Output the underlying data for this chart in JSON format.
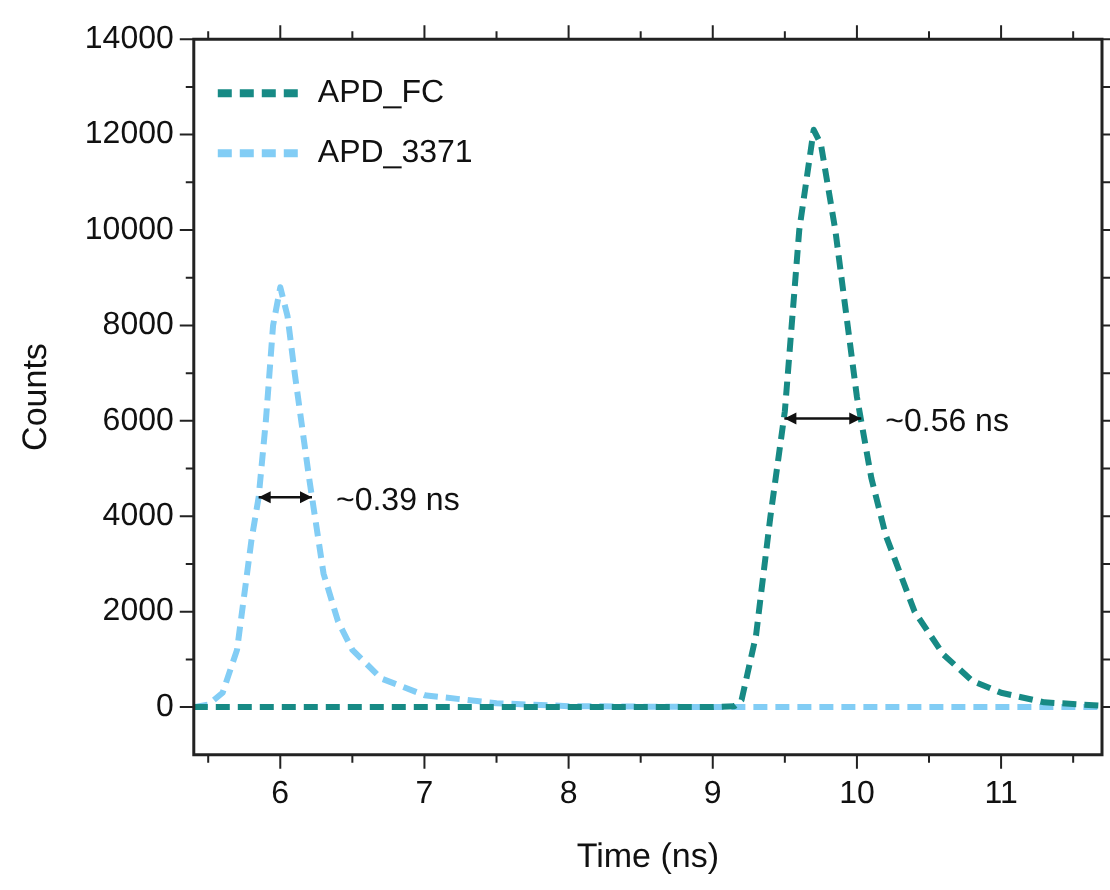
{
  "chart_data": {
    "type": "line",
    "xlabel": "Time (ns)",
    "ylabel": "Counts",
    "xlim": [
      5.4,
      11.7
    ],
    "ylim": [
      -1000,
      14000
    ],
    "xticks": [
      {
        "value": 5.5,
        "label": null
      },
      6,
      {
        "value": 6.5,
        "label": null
      },
      7,
      {
        "value": 7.5,
        "label": null
      },
      8,
      {
        "value": 8.5,
        "label": null
      },
      9,
      {
        "value": 9.5,
        "label": null
      },
      10,
      {
        "value": 10.5,
        "label": null
      },
      11,
      {
        "value": 11.5,
        "label": null
      }
    ],
    "yticks": [
      0,
      {
        "value": 1000,
        "label": null
      },
      2000,
      {
        "value": 3000,
        "label": null
      },
      4000,
      {
        "value": 5000,
        "label": null
      },
      6000,
      {
        "value": 7000,
        "label": null
      },
      8000,
      {
        "value": 9000,
        "label": null
      },
      10000,
      {
        "value": 11000,
        "label": null
      },
      12000,
      {
        "value": 13000,
        "label": null
      },
      14000
    ],
    "grid": false,
    "legend": "top left",
    "line_style": "dashed",
    "marker": "none",
    "series": [
      {
        "name": "APD_FC",
        "color": "#178a85",
        "x": [
          5.4,
          6,
          7,
          8,
          9,
          9.15,
          9.2,
          9.3,
          9.4,
          9.5,
          9.6,
          9.7,
          9.75,
          9.85,
          10.0,
          10.1,
          10.2,
          10.4,
          10.6,
          10.8,
          11.0,
          11.3,
          11.7
        ],
        "values": [
          0,
          0,
          0,
          0,
          0,
          20,
          150,
          1500,
          4000,
          6200,
          10000,
          12100,
          11800,
          10000,
          6500,
          4800,
          3600,
          2000,
          1100,
          550,
          300,
          100,
          30
        ]
      },
      {
        "name": "APD_3371",
        "color": "#82cdf5",
        "x": [
          5.4,
          5.5,
          5.6,
          5.7,
          5.8,
          5.85,
          5.9,
          5.95,
          6.0,
          6.05,
          6.1,
          6.2,
          6.3,
          6.4,
          6.5,
          6.7,
          7.0,
          7.5,
          8,
          9,
          10,
          11.7
        ],
        "values": [
          0,
          50,
          300,
          1200,
          3500,
          4400,
          6000,
          8000,
          8800,
          8200,
          7000,
          4800,
          2800,
          1800,
          1200,
          600,
          250,
          80,
          20,
          0,
          0,
          0
        ]
      }
    ],
    "annotations": [
      {
        "text": "~0.39 ns",
        "x": 6.22,
        "y": 4400
      },
      {
        "text": "~0.56 ns",
        "x": 10.03,
        "y": 6050
      }
    ]
  }
}
